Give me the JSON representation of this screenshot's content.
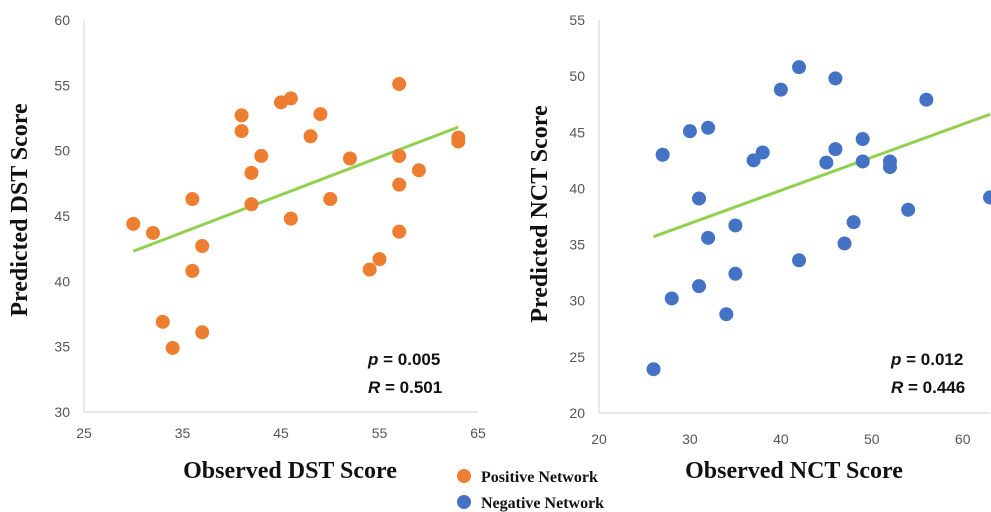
{
  "chart_data": [
    {
      "type": "scatter",
      "xlabel": "Observed DST Score",
      "ylabel": "Predicted DST Score",
      "xlim": [
        25,
        65
      ],
      "ylim": [
        30,
        60
      ],
      "xticks": [
        "25",
        "35",
        "45",
        "55",
        "65"
      ],
      "yticks": [
        "30",
        "35",
        "40",
        "45",
        "50",
        "55",
        "60"
      ],
      "grid": false,
      "stats": {
        "p_symbol": "p",
        "p_value": "= 0.005",
        "r_symbol": "R",
        "r_value": "= 0.501"
      },
      "series": [
        {
          "name": "Positive Network",
          "color": "#ED7D31",
          "points": [
            [
              30,
              44.4
            ],
            [
              32,
              43.7
            ],
            [
              33,
              36.9
            ],
            [
              34,
              34.9
            ],
            [
              36,
              46.3
            ],
            [
              36,
              40.8
            ],
            [
              37,
              42.7
            ],
            [
              37,
              36.1
            ],
            [
              41,
              52.7
            ],
            [
              41,
              51.5
            ],
            [
              42,
              48.3
            ],
            [
              42,
              45.9
            ],
            [
              43,
              49.6
            ],
            [
              45,
              53.7
            ],
            [
              46,
              54.0
            ],
            [
              46,
              44.8
            ],
            [
              48,
              51.1
            ],
            [
              49,
              52.8
            ],
            [
              50,
              46.3
            ],
            [
              52,
              49.4
            ],
            [
              54,
              40.9
            ],
            [
              55,
              41.7
            ],
            [
              57,
              55.1
            ],
            [
              57,
              49.6
            ],
            [
              57,
              47.4
            ],
            [
              57,
              43.8
            ],
            [
              59,
              48.5
            ],
            [
              63,
              51.0
            ],
            [
              63,
              50.7
            ]
          ]
        }
      ],
      "trendline": {
        "color": "#92D050",
        "x": [
          30,
          63
        ],
        "y": [
          42.3,
          51.8
        ]
      }
    },
    {
      "type": "scatter",
      "xlabel": "Observed NCT Score",
      "ylabel": "Predicted NCT Score",
      "xlim": [
        20,
        63
      ],
      "ylim": [
        20,
        55
      ],
      "xticks": [
        "20",
        "30",
        "40",
        "50",
        "60"
      ],
      "yticks": [
        "20",
        "25",
        "30",
        "35",
        "40",
        "45",
        "50",
        "55"
      ],
      "grid": false,
      "stats": {
        "p_symbol": "p",
        "p_value": "= 0.012",
        "r_symbol": "R",
        "r_value": "= 0.446"
      },
      "series": [
        {
          "name": "Negative Network",
          "color": "#4472C4",
          "points": [
            [
              26,
              23.9
            ],
            [
              27,
              43.0
            ],
            [
              28,
              30.2
            ],
            [
              30,
              45.1
            ],
            [
              31,
              39.1
            ],
            [
              31,
              31.3
            ],
            [
              32,
              45.4
            ],
            [
              32,
              35.6
            ],
            [
              34,
              28.8
            ],
            [
              35,
              36.7
            ],
            [
              35,
              32.4
            ],
            [
              37,
              42.5
            ],
            [
              38,
              43.2
            ],
            [
              40,
              48.8
            ],
            [
              42,
              50.8
            ],
            [
              42,
              33.6
            ],
            [
              45,
              42.3
            ],
            [
              46,
              49.8
            ],
            [
              46,
              43.5
            ],
            [
              47,
              35.1
            ],
            [
              48,
              37.0
            ],
            [
              49,
              44.4
            ],
            [
              49,
              42.4
            ],
            [
              52,
              42.4
            ],
            [
              52,
              41.9
            ],
            [
              54,
              38.1
            ],
            [
              56,
              47.9
            ],
            [
              63,
              39.2
            ]
          ]
        }
      ],
      "trendline": {
        "color": "#92D050",
        "x": [
          26,
          63
        ],
        "y": [
          35.7,
          46.6
        ]
      }
    }
  ],
  "legend": {
    "items": [
      {
        "label": "Positive Network",
        "color": "#ED7D31"
      },
      {
        "label": "Negative Network",
        "color": "#4472C4"
      }
    ]
  }
}
